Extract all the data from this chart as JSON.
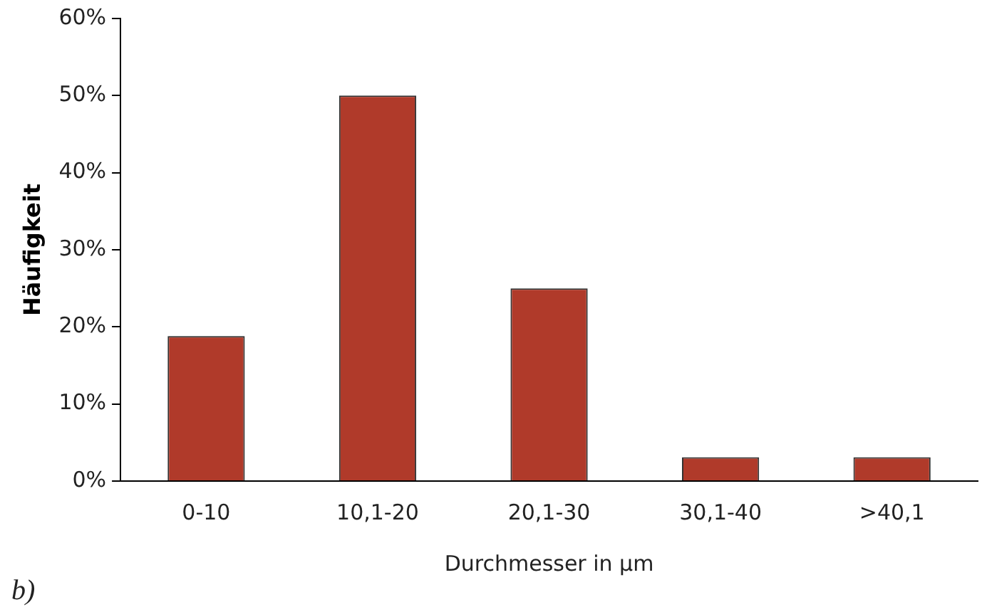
{
  "chart_data": {
    "type": "bar",
    "xlabel": "Durchmesser in µm",
    "ylabel": "Häufigkeit",
    "categories": [
      "0-10",
      "10,1-20",
      "20,1-30",
      "30,1-40",
      ">40,1"
    ],
    "values": [
      18.8,
      50,
      25,
      3.1,
      3.1
    ],
    "color": "#b03a2a",
    "ylim": [
      0,
      60
    ],
    "yticks": [
      {
        "value": 0,
        "label": "0%"
      },
      {
        "value": 10,
        "label": "10%"
      },
      {
        "value": 20,
        "label": "20%"
      },
      {
        "value": 30,
        "label": "30%"
      },
      {
        "value": 40,
        "label": "40%"
      },
      {
        "value": 50,
        "label": "50%"
      },
      {
        "value": 60,
        "label": "60%"
      }
    ],
    "grid": false,
    "legend": false,
    "annotations": [
      "b)"
    ]
  }
}
